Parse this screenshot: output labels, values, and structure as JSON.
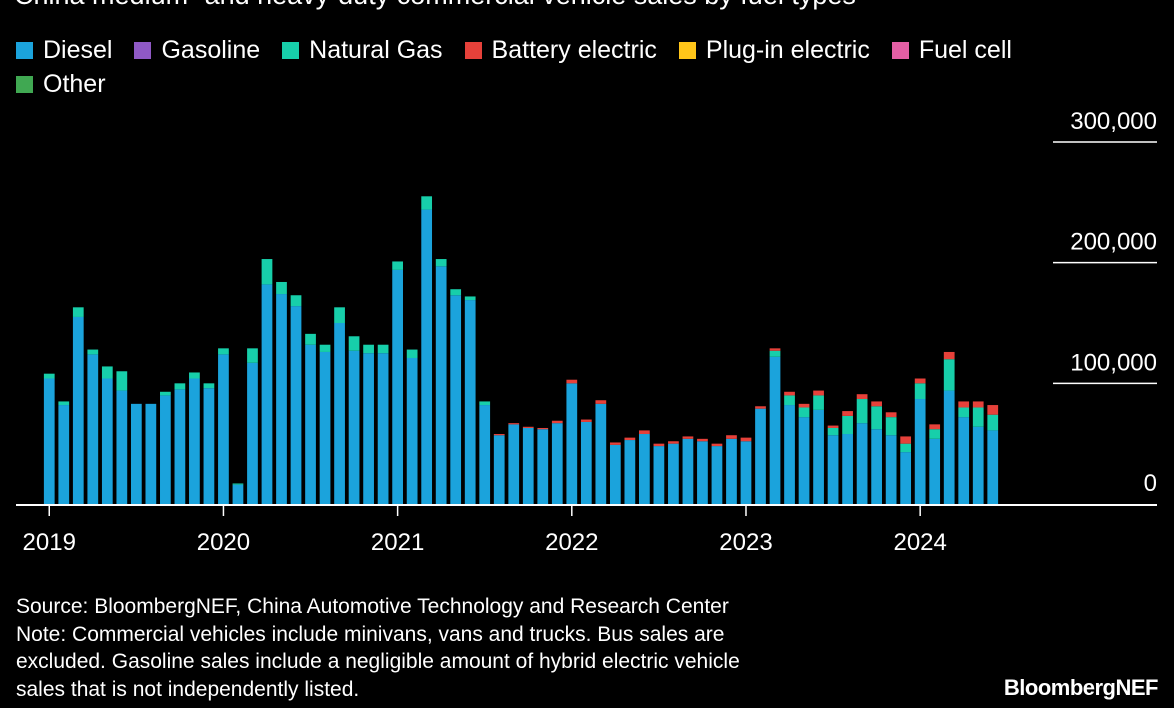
{
  "colors": {
    "background": "#000000",
    "text": "#ffffff",
    "axis": "#ffffff"
  },
  "brand": "BloombergNEF",
  "footnote": {
    "source": "Source: BloombergNEF, China Automotive Technology and Research Center",
    "note_lines": [
      "Note: Commercial vehicles include minivans, vans and trucks. Bus sales are",
      "excluded. Gasoline sales include a negligible amount of hybrid electric vehicle",
      "sales that is not independently listed."
    ]
  },
  "chart_data": {
    "type": "bar",
    "stacked": true,
    "title": "China medium- and heavy-duty commercial vehicle sales by fuel types",
    "ylim": [
      0,
      300000
    ],
    "yticks": [
      0,
      100000,
      200000,
      300000
    ],
    "ytick_labels": [
      "0",
      "100,000",
      "200,000",
      "300,000"
    ],
    "y_axis_side": "right",
    "legend_position": "top-left",
    "gridlines": "short tick lines at right",
    "xtick_labels": [
      {
        "label": "2019",
        "index": 0
      },
      {
        "label": "2020",
        "index": 12
      },
      {
        "label": "2021",
        "index": 24
      },
      {
        "label": "2022",
        "index": 36
      },
      {
        "label": "2023",
        "index": 48
      },
      {
        "label": "2024",
        "index": 60
      }
    ],
    "categories": [
      "2019-01",
      "2019-02",
      "2019-03",
      "2019-04",
      "2019-05",
      "2019-06",
      "2019-07",
      "2019-08",
      "2019-09",
      "2019-10",
      "2019-11",
      "2019-12",
      "2020-01",
      "2020-02",
      "2020-03",
      "2020-04",
      "2020-05",
      "2020-06",
      "2020-07",
      "2020-08",
      "2020-09",
      "2020-10",
      "2020-11",
      "2020-12",
      "2021-01",
      "2021-02",
      "2021-03",
      "2021-04",
      "2021-05",
      "2021-06",
      "2021-07",
      "2021-08",
      "2021-09",
      "2021-10",
      "2021-11",
      "2021-12",
      "2022-01",
      "2022-02",
      "2022-03",
      "2022-04",
      "2022-05",
      "2022-06",
      "2022-07",
      "2022-08",
      "2022-09",
      "2022-10",
      "2022-11",
      "2022-12",
      "2023-01",
      "2023-02",
      "2023-03",
      "2023-04",
      "2023-05",
      "2023-06",
      "2023-07",
      "2023-08",
      "2023-09",
      "2023-10",
      "2023-11",
      "2023-12",
      "2024-01",
      "2024-02",
      "2024-03",
      "2024-04",
      "2024-05",
      "2024-06"
    ],
    "series": [
      {
        "name": "Diesel",
        "color": "#1ba3dc",
        "values": [
          104000,
          82000,
          155000,
          124000,
          104000,
          94000,
          83000,
          83000,
          90000,
          95000,
          104000,
          96000,
          124000,
          16000,
          117000,
          182000,
          174000,
          164000,
          132000,
          126000,
          150000,
          127000,
          125000,
          125000,
          194000,
          121000,
          244000,
          197000,
          173000,
          169000,
          82000,
          57000,
          66000,
          63000,
          62000,
          67000,
          100000,
          68000,
          83000,
          49000,
          53000,
          58000,
          48000,
          50000,
          54000,
          52000,
          48000,
          54000,
          52000,
          79000,
          122000,
          82000,
          72000,
          78000,
          57000,
          58000,
          67000,
          62000,
          57000,
          43000,
          87000,
          54000,
          94000,
          72000,
          64000,
          61000
        ]
      },
      {
        "name": "Gasoline",
        "color": "#8f59c5",
        "values": [
          0,
          0,
          0,
          0,
          0,
          0,
          0,
          0,
          0,
          0,
          0,
          0,
          0,
          0,
          0,
          0,
          0,
          0,
          0,
          0,
          0,
          0,
          0,
          0,
          0,
          0,
          0,
          0,
          0,
          0,
          0,
          0,
          0,
          0,
          0,
          0,
          0,
          0,
          0,
          0,
          0,
          0,
          0,
          0,
          0,
          0,
          0,
          0,
          0,
          0,
          0,
          0,
          0,
          0,
          0,
          0,
          0,
          0,
          0,
          0,
          0,
          0,
          0,
          0,
          0,
          0
        ]
      },
      {
        "name": "Natural Gas",
        "color": "#17cfaa",
        "values": [
          4000,
          3000,
          8000,
          4000,
          10000,
          16000,
          0,
          0,
          3000,
          5000,
          5000,
          4000,
          5000,
          1000,
          12000,
          21000,
          10000,
          9000,
          9000,
          6000,
          13000,
          12000,
          7000,
          7000,
          7000,
          7000,
          11000,
          6000,
          5000,
          3000,
          3000,
          0,
          0,
          0,
          0,
          0,
          0,
          0,
          0,
          0,
          0,
          0,
          0,
          0,
          0,
          0,
          0,
          0,
          0,
          0,
          5000,
          8000,
          8000,
          12000,
          6000,
          15000,
          20000,
          19000,
          15000,
          7000,
          13000,
          8000,
          26000,
          8000,
          16000,
          13000
        ]
      },
      {
        "name": "Battery electric",
        "color": "#e6413a",
        "values": [
          0,
          0,
          0,
          0,
          0,
          0,
          0,
          0,
          0,
          0,
          0,
          0,
          0,
          0,
          0,
          0,
          0,
          0,
          0,
          0,
          0,
          0,
          0,
          0,
          0,
          0,
          0,
          0,
          0,
          0,
          0,
          1000,
          1000,
          1000,
          1000,
          2000,
          3000,
          2000,
          3000,
          2000,
          2000,
          3000,
          2000,
          2000,
          2000,
          2000,
          2000,
          3000,
          3000,
          2000,
          2000,
          3000,
          3000,
          4000,
          2000,
          4000,
          4000,
          4000,
          4000,
          6000,
          4000,
          4000,
          6000,
          5000,
          5000,
          8000
        ]
      },
      {
        "name": "Plug-in electric",
        "color": "#ffc519",
        "values": [
          0,
          0,
          0,
          0,
          0,
          0,
          0,
          0,
          0,
          0,
          0,
          0,
          0,
          0,
          0,
          0,
          0,
          0,
          0,
          0,
          0,
          0,
          0,
          0,
          0,
          0,
          0,
          0,
          0,
          0,
          0,
          0,
          0,
          0,
          0,
          0,
          0,
          0,
          0,
          0,
          0,
          0,
          0,
          0,
          0,
          0,
          0,
          0,
          0,
          0,
          0,
          0,
          0,
          0,
          0,
          0,
          0,
          0,
          0,
          0,
          0,
          0,
          0,
          0,
          0,
          0
        ]
      },
      {
        "name": "Fuel cell",
        "color": "#e45ea4",
        "values": [
          0,
          0,
          0,
          0,
          0,
          0,
          0,
          0,
          0,
          0,
          0,
          0,
          0,
          0,
          0,
          0,
          0,
          0,
          0,
          0,
          0,
          0,
          0,
          0,
          0,
          0,
          0,
          0,
          0,
          0,
          0,
          0,
          0,
          0,
          0,
          0,
          0,
          0,
          0,
          0,
          0,
          0,
          0,
          0,
          0,
          0,
          0,
          0,
          0,
          0,
          0,
          0,
          0,
          0,
          0,
          0,
          0,
          0,
          0,
          0,
          0,
          0,
          0,
          0,
          0,
          0
        ]
      },
      {
        "name": "Other",
        "color": "#40a852",
        "values": [
          0,
          0,
          0,
          0,
          0,
          0,
          0,
          0,
          0,
          0,
          0,
          0,
          0,
          0,
          0,
          0,
          0,
          0,
          0,
          0,
          0,
          0,
          0,
          0,
          0,
          0,
          0,
          0,
          0,
          0,
          0,
          0,
          0,
          0,
          0,
          0,
          0,
          0,
          0,
          0,
          0,
          0,
          0,
          0,
          0,
          0,
          0,
          0,
          0,
          0,
          0,
          0,
          0,
          0,
          0,
          0,
          0,
          0,
          0,
          0,
          0,
          0,
          0,
          0,
          0,
          0
        ]
      }
    ]
  }
}
